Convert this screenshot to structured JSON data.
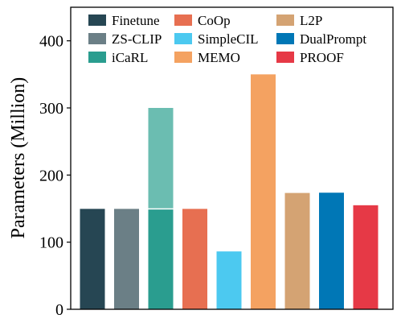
{
  "chart_data": {
    "type": "bar",
    "title": "",
    "xlabel": "",
    "ylabel": "Parameters (Million)",
    "ylim": [
      0,
      450
    ],
    "yticks": [
      0,
      100,
      200,
      300,
      400
    ],
    "grid": false,
    "legend_position": "top",
    "categories": [
      "Finetune",
      "ZS-CLIP",
      "iCaRL",
      "CoOp",
      "SimpleCIL",
      "MEMO",
      "L2P",
      "DualPrompt",
      "PROOF"
    ],
    "values": [
      149.6,
      149.6,
      149.6,
      149.6,
      86.2,
      350,
      173.3,
      173.7,
      155
    ],
    "stacked_extra": [
      {
        "category": "iCaRL",
        "base": 149.6,
        "top": 300,
        "color": "#6bbdb1"
      }
    ],
    "colors": [
      "#264653",
      "#6b7f86",
      "#2a9d8f",
      "#e76f51",
      "#4cc9f0",
      "#f4a261",
      "#d4a373",
      "#0077b6",
      "#e63946"
    ]
  }
}
